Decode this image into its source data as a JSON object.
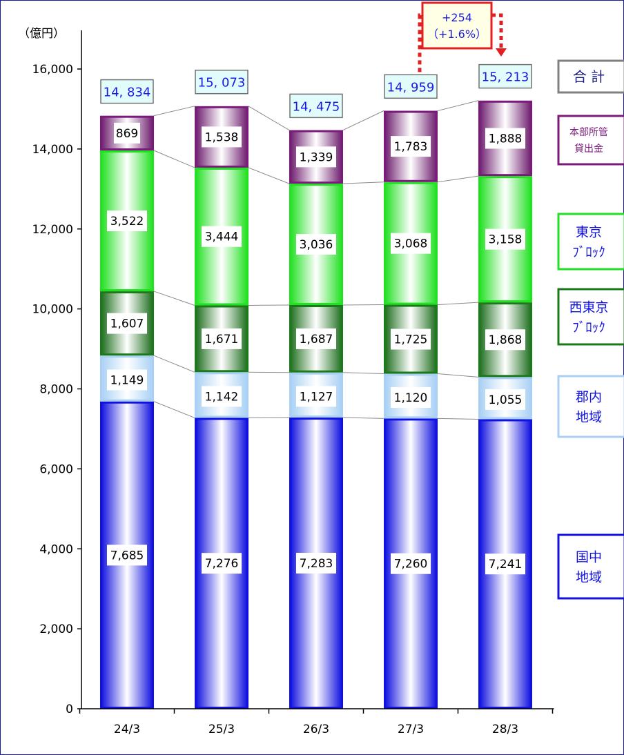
{
  "chart_data": {
    "type": "bar",
    "stacked": true,
    "unit_label": "（億円）",
    "categories": [
      "24/3",
      "25/3",
      "26/3",
      "27/3",
      "28/3"
    ],
    "ylim": [
      0,
      16000
    ],
    "yticks": [
      0,
      2000,
      4000,
      6000,
      8000,
      10000,
      12000,
      14000,
      16000
    ],
    "ytick_labels": [
      "0",
      "2,000",
      "4,000",
      "6,000",
      "8,000",
      "10,000",
      "12,000",
      "14,000",
      "16,000"
    ],
    "grid": false,
    "legend_position": "right",
    "series": [
      {
        "name": "国中地域",
        "legend_lines": [
          "国中",
          "地域"
        ],
        "color": "#1010e0",
        "border": "#1010e0",
        "values": [
          7685,
          7276,
          7283,
          7260,
          7241
        ],
        "labels": [
          "7,685",
          "7,276",
          "7,283",
          "7,260",
          "7,241"
        ]
      },
      {
        "name": "郡内地域",
        "legend_lines": [
          "郡内",
          "地域"
        ],
        "color": "#a8d0f4",
        "border": "#a8d0f4",
        "values": [
          1149,
          1142,
          1127,
          1120,
          1055
        ],
        "labels": [
          "1,149",
          "1,142",
          "1,127",
          "1,120",
          "1,055"
        ]
      },
      {
        "name": "西東京ブロック",
        "legend_lines": [
          "西東京",
          "ﾌﾞﾛｯｸ"
        ],
        "color": "#1e6e1e",
        "border": "#1a7a1a",
        "values": [
          1607,
          1671,
          1687,
          1725,
          1868
        ],
        "labels": [
          "1,607",
          "1,671",
          "1,687",
          "1,725",
          "1,868"
        ]
      },
      {
        "name": "東京ブロック",
        "legend_lines": [
          "東京",
          "ﾌﾞﾛｯｸ"
        ],
        "color": "#22e022",
        "border": "#22e022",
        "values": [
          3522,
          3444,
          3036,
          3068,
          3158
        ],
        "labels": [
          "3,522",
          "3,444",
          "3,036",
          "3,068",
          "3,158"
        ]
      },
      {
        "name": "本部所管貸出金",
        "legend_lines": [
          "本部所管",
          "貸出金"
        ],
        "color": "#6e1e6e",
        "border": "#7a1a7a",
        "values": [
          869,
          1538,
          1339,
          1783,
          1888
        ],
        "labels": [
          "869",
          "1,538",
          "1,339",
          "1,783",
          "1,888"
        ]
      }
    ],
    "totals": {
      "name": "合 計",
      "values": [
        14834,
        15073,
        14475,
        14959,
        15213
      ],
      "labels": [
        "14, 834",
        "15, 073",
        "14, 475",
        "14, 959",
        "15, 213"
      ]
    },
    "annotation": {
      "lines": [
        "+254",
        "（+1.6%）"
      ],
      "from": "27/3",
      "to": "28/3"
    }
  },
  "colors": {
    "axis": "#000000",
    "total_text": "#1a1ae0",
    "total_box_fill": "#e2fcfc",
    "total_box_border": "#707070",
    "annotation": "#e02020",
    "legend_text_total": "#1a1a80"
  }
}
